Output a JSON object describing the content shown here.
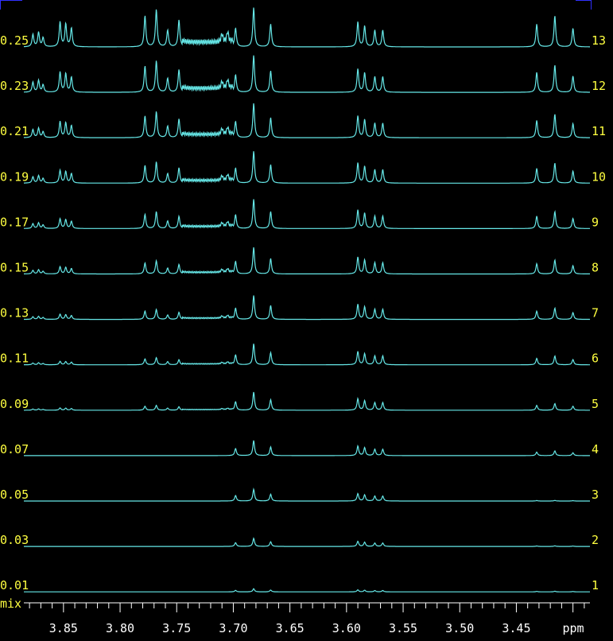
{
  "colors": {
    "background": "#000000",
    "trace": "#66e8e8",
    "label": "#ffff40",
    "axis": "#ffffff",
    "corner": "#3030ff"
  },
  "chart_data": {
    "type": "line",
    "subtype": "stacked NMR spectra",
    "xlabel": "ppm",
    "corner_label": "mix",
    "x_reversed": true,
    "xlim": [
      3.385,
      3.885
    ],
    "xticks": [
      "3.85",
      "3.80",
      "3.75",
      "3.70",
      "3.65",
      "3.60",
      "3.55",
      "3.50",
      "3.45",
      "ppm"
    ],
    "traces": [
      {
        "index": "13",
        "left_label": "0.25"
      },
      {
        "index": "12",
        "left_label": "0.23"
      },
      {
        "index": "11",
        "left_label": "0.21"
      },
      {
        "index": "10",
        "left_label": "0.19"
      },
      {
        "index": "9",
        "left_label": "0.17"
      },
      {
        "index": "8",
        "left_label": "0.15"
      },
      {
        "index": "7",
        "left_label": "0.13"
      },
      {
        "index": "6",
        "left_label": "0.11"
      },
      {
        "index": "5",
        "left_label": "0.09"
      },
      {
        "index": "4",
        "left_label": "0.07"
      },
      {
        "index": "3",
        "left_label": "0.05"
      },
      {
        "index": "2",
        "left_label": "0.03"
      },
      {
        "index": "1",
        "left_label": "0.01"
      }
    ],
    "peaks": [
      {
        "ppm": 3.877,
        "height": 0.3,
        "group": "ala"
      },
      {
        "ppm": 3.872,
        "height": 0.35,
        "group": "ala"
      },
      {
        "ppm": 3.868,
        "height": 0.22,
        "group": "ala"
      },
      {
        "ppm": 3.853,
        "height": 0.6,
        "group": "ala"
      },
      {
        "ppm": 3.848,
        "height": 0.55,
        "group": "ala"
      },
      {
        "ppm": 3.843,
        "height": 0.45,
        "group": "ala"
      },
      {
        "ppm": 3.778,
        "height": 0.75,
        "group": "glc"
      },
      {
        "ppm": 3.768,
        "height": 0.9,
        "group": "glc"
      },
      {
        "ppm": 3.758,
        "height": 0.4,
        "group": "glc"
      },
      {
        "ppm": 3.748,
        "height": 0.65,
        "group": "glc"
      },
      {
        "ppm": 3.71,
        "height": 0.2,
        "group": "glc"
      },
      {
        "ppm": 3.705,
        "height": 0.25,
        "group": "glc"
      },
      {
        "ppm": 3.698,
        "height": 0.45,
        "group": "main"
      },
      {
        "ppm": 3.682,
        "height": 0.95,
        "group": "main"
      },
      {
        "ppm": 3.667,
        "height": 0.55,
        "group": "main"
      },
      {
        "ppm": 3.59,
        "height": 0.6,
        "group": "main"
      },
      {
        "ppm": 3.584,
        "height": 0.5,
        "group": "main"
      },
      {
        "ppm": 3.575,
        "height": 0.4,
        "group": "main"
      },
      {
        "ppm": 3.568,
        "height": 0.4,
        "group": "main"
      },
      {
        "ppm": 3.432,
        "height": 0.55,
        "group": "late"
      },
      {
        "ppm": 3.416,
        "height": 0.75,
        "group": "late"
      },
      {
        "ppm": 3.4,
        "height": 0.45,
        "group": "late"
      }
    ]
  }
}
